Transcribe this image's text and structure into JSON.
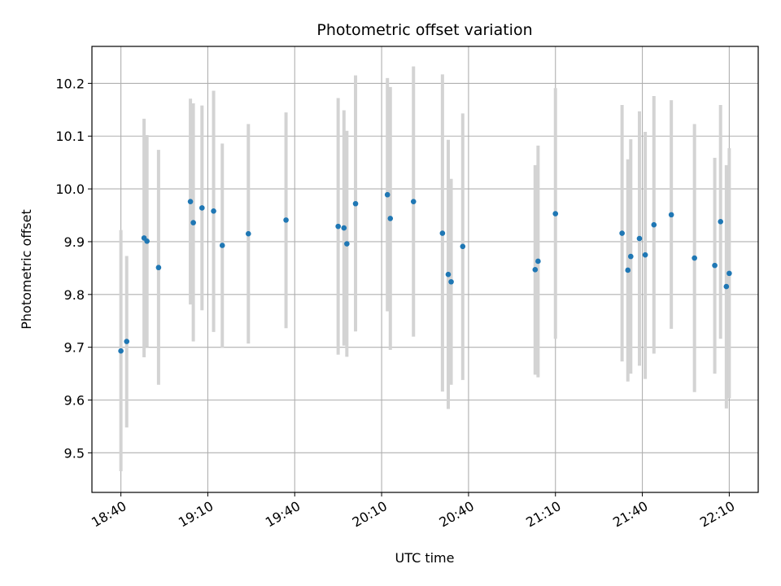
{
  "chart_data": {
    "type": "scatter",
    "title": "Photometric offset variation",
    "xlabel": "UTC time",
    "ylabel": "Photometric offset",
    "x_tick_labels": [
      "18:40",
      "19:10",
      "19:40",
      "20:10",
      "20:40",
      "21:10",
      "21:40",
      "22:10"
    ],
    "y_tick_labels": [
      "9.5",
      "9.6",
      "9.7",
      "9.8",
      "9.9",
      "10.0",
      "10.1",
      "10.2"
    ],
    "y_ticks": [
      9.5,
      9.6,
      9.7,
      9.8,
      9.9,
      10.0,
      10.1,
      10.2
    ],
    "xlim": [
      "18:30",
      "22:20"
    ],
    "ylim": [
      9.425,
      10.27
    ],
    "grid": true,
    "marker_color": "#1f77b4",
    "errorbar_color": "#d3d3d3",
    "points": [
      {
        "t": "18:40",
        "y": 9.693,
        "lo": 9.465,
        "hi": 9.922
      },
      {
        "t": "18:42",
        "y": 9.711,
        "lo": 9.548,
        "hi": 9.873
      },
      {
        "t": "18:48",
        "y": 9.907,
        "lo": 9.681,
        "hi": 10.133
      },
      {
        "t": "18:49",
        "y": 9.901,
        "lo": 9.7,
        "hi": 10.102
      },
      {
        "t": "18:53",
        "y": 9.851,
        "lo": 9.629,
        "hi": 10.074
      },
      {
        "t": "19:04",
        "y": 9.976,
        "lo": 9.781,
        "hi": 10.171
      },
      {
        "t": "19:05",
        "y": 9.936,
        "lo": 9.711,
        "hi": 10.162
      },
      {
        "t": "19:08",
        "y": 9.964,
        "lo": 9.77,
        "hi": 10.158
      },
      {
        "t": "19:12",
        "y": 9.958,
        "lo": 9.729,
        "hi": 10.186
      },
      {
        "t": "19:15",
        "y": 9.893,
        "lo": 9.699,
        "hi": 10.086
      },
      {
        "t": "19:24",
        "y": 9.915,
        "lo": 9.707,
        "hi": 10.123
      },
      {
        "t": "19:37",
        "y": 9.941,
        "lo": 9.736,
        "hi": 10.145
      },
      {
        "t": "19:55",
        "y": 9.929,
        "lo": 9.686,
        "hi": 10.172
      },
      {
        "t": "19:57",
        "y": 9.926,
        "lo": 9.703,
        "hi": 10.149
      },
      {
        "t": "19:58",
        "y": 9.896,
        "lo": 9.682,
        "hi": 10.11
      },
      {
        "t": "20:01",
        "y": 9.972,
        "lo": 9.73,
        "hi": 10.215
      },
      {
        "t": "20:12",
        "y": 9.989,
        "lo": 9.768,
        "hi": 10.21
      },
      {
        "t": "20:13",
        "y": 9.944,
        "lo": 9.695,
        "hi": 10.193
      },
      {
        "t": "20:21",
        "y": 9.976,
        "lo": 9.72,
        "hi": 10.232
      },
      {
        "t": "20:31",
        "y": 9.916,
        "lo": 9.616,
        "hi": 10.217
      },
      {
        "t": "20:33",
        "y": 9.838,
        "lo": 9.583,
        "hi": 10.093
      },
      {
        "t": "20:34",
        "y": 9.824,
        "lo": 9.629,
        "hi": 10.019
      },
      {
        "t": "20:38",
        "y": 9.891,
        "lo": 9.638,
        "hi": 10.143
      },
      {
        "t": "21:03",
        "y": 9.847,
        "lo": 9.648,
        "hi": 10.045
      },
      {
        "t": "21:04",
        "y": 9.863,
        "lo": 9.643,
        "hi": 10.082
      },
      {
        "t": "21:10",
        "y": 9.953,
        "lo": 9.716,
        "hi": 10.191
      },
      {
        "t": "21:33",
        "y": 9.916,
        "lo": 9.673,
        "hi": 10.159
      },
      {
        "t": "21:35",
        "y": 9.846,
        "lo": 9.635,
        "hi": 10.056
      },
      {
        "t": "21:36",
        "y": 9.872,
        "lo": 9.65,
        "hi": 10.094
      },
      {
        "t": "21:39",
        "y": 9.906,
        "lo": 9.665,
        "hi": 10.147
      },
      {
        "t": "21:41",
        "y": 9.875,
        "lo": 9.64,
        "hi": 10.108
      },
      {
        "t": "21:44",
        "y": 9.932,
        "lo": 9.688,
        "hi": 10.176
      },
      {
        "t": "21:50",
        "y": 9.951,
        "lo": 9.735,
        "hi": 10.168
      },
      {
        "t": "21:58",
        "y": 9.869,
        "lo": 9.615,
        "hi": 10.123
      },
      {
        "t": "22:05",
        "y": 9.855,
        "lo": 9.65,
        "hi": 10.059
      },
      {
        "t": "22:07",
        "y": 9.938,
        "lo": 9.716,
        "hi": 10.159
      },
      {
        "t": "22:09",
        "y": 9.815,
        "lo": 9.584,
        "hi": 10.045
      },
      {
        "t": "22:10",
        "y": 9.84,
        "lo": 9.603,
        "hi": 10.077
      }
    ]
  }
}
